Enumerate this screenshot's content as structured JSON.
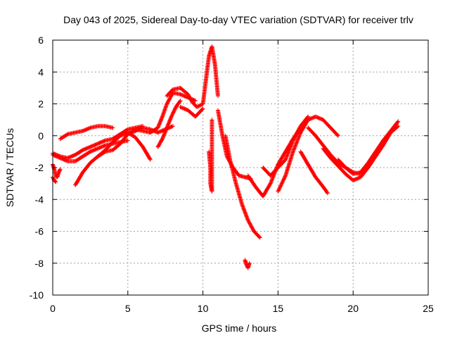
{
  "chart_data": {
    "type": "scatter",
    "title": "Day 043 of 2025, Sidereal Day-to-day VTEC variation (SDTVAR) for receiver trlv",
    "xlabel": "GPS time / hours",
    "ylabel": "SDTVAR / TECUs",
    "xlim": [
      0,
      25
    ],
    "ylim": [
      -10,
      6
    ],
    "xticks": [
      "0",
      "5",
      "10",
      "15",
      "20",
      "25"
    ],
    "yticks": [
      "-10",
      "-8",
      "-6",
      "-4",
      "-2",
      "0",
      "2",
      "4",
      "6"
    ],
    "grid": true,
    "marker": "+",
    "color": "#ff0000",
    "series": [
      {
        "x": [
          0,
          0.1,
          0.2,
          0.3,
          0.4,
          0.5
        ],
        "y": [
          -1.8,
          -2.1,
          -2.5,
          -2.6,
          -2.3,
          -2.1
        ]
      },
      {
        "x": [
          0,
          0.1,
          0.2
        ],
        "y": [
          -2.6,
          -2.8,
          -2.9
        ]
      },
      {
        "x": [
          0,
          0.5,
          1,
          1.5,
          2,
          2.5,
          3,
          3.5,
          4,
          4.5,
          5,
          5.5,
          6
        ],
        "y": [
          -1.1,
          -1.3,
          -1.4,
          -1.2,
          -0.9,
          -0.7,
          -0.5,
          -0.3,
          -0.2,
          0.1,
          0.4,
          0.5,
          0.6
        ]
      },
      {
        "x": [
          0.5,
          1,
          1.5,
          2,
          2.5,
          3,
          3.5,
          4
        ],
        "y": [
          -0.2,
          0.1,
          0.2,
          0.3,
          0.5,
          0.6,
          0.6,
          0.5
        ]
      },
      {
        "x": [
          0,
          0.5,
          1,
          1.5,
          2,
          2.5,
          3,
          3.5,
          4,
          4.5,
          5
        ],
        "y": [
          -1.2,
          -1.4,
          -1.6,
          -1.6,
          -1.3,
          -1.0,
          -0.8,
          -0.6,
          -0.5,
          -0.4,
          -0.3
        ]
      },
      {
        "x": [
          1.5,
          2,
          2.5,
          3,
          3.5,
          4,
          4.5,
          5,
          5.5,
          6,
          6.5
        ],
        "y": [
          -3.1,
          -2.3,
          -1.7,
          -1.3,
          -1.0,
          -0.9,
          -0.5,
          0.1,
          0.4,
          0.3,
          0.2
        ]
      },
      {
        "x": [
          3,
          3.5,
          4,
          4.5,
          5,
          5.5,
          6,
          6.5
        ],
        "y": [
          -1.3,
          -0.9,
          -0.4,
          0.0,
          0.2,
          -0.1,
          -0.7,
          -1.5
        ]
      },
      {
        "x": [
          5,
          5.5,
          6,
          6.5,
          7,
          7.5,
          8
        ],
        "y": [
          0.1,
          0.3,
          0.5,
          0.4,
          0.2,
          0.4,
          0.6
        ]
      },
      {
        "x": [
          7,
          7.3,
          7.6,
          7.9,
          8.2,
          8.5
        ],
        "y": [
          -0.7,
          -0.2,
          0.5,
          1.2,
          1.8,
          2.2
        ]
      },
      {
        "x": [
          6.5,
          7,
          7.3,
          7.6,
          8,
          8.5,
          9,
          9.5
        ],
        "y": [
          0.2,
          0.5,
          1.2,
          2.0,
          2.7,
          2.6,
          2.4,
          2.2
        ]
      },
      {
        "x": [
          7.6,
          8,
          8.5,
          9,
          9.3,
          9.6,
          10
        ],
        "y": [
          2.5,
          2.9,
          3.0,
          2.6,
          2.1,
          1.8,
          2.0
        ]
      },
      {
        "x": [
          8.5,
          9,
          9.5,
          10
        ],
        "y": [
          1.8,
          1.6,
          1.2,
          1.7
        ]
      },
      {
        "x": [
          10,
          10.2,
          10.4,
          10.6,
          10.8,
          11
        ],
        "y": [
          2.0,
          3.5,
          5.0,
          5.6,
          4.5,
          2.5
        ]
      },
      {
        "x": [
          10.4,
          10.5,
          10.5,
          10.6,
          10.6
        ],
        "y": [
          -1.0,
          -2.0,
          -3.0,
          -3.5,
          1.0
        ]
      },
      {
        "x": [
          11,
          11.3,
          11.6,
          12,
          12.4,
          12.8,
          13.2
        ],
        "y": [
          1.6,
          0.0,
          -1.3,
          -2.0,
          -2.5,
          -2.6,
          -2.7
        ]
      },
      {
        "x": [
          11.5,
          11.8,
          12.2,
          12.6,
          13,
          13.4,
          13.8
        ],
        "y": [
          0.0,
          -1.5,
          -3.0,
          -4.3,
          -5.3,
          -6.0,
          -6.4
        ]
      },
      {
        "x": [
          12.8,
          12.9,
          13,
          13.1
        ],
        "y": [
          -7.8,
          -8.1,
          -8.3,
          -8.0
        ]
      },
      {
        "x": [
          13,
          13.5,
          14,
          14.5,
          15,
          15.5,
          16,
          16.5
        ],
        "y": [
          -2.5,
          -3.2,
          -3.8,
          -3.0,
          -1.8,
          -1.0,
          -0.2,
          0.5
        ]
      },
      {
        "x": [
          14,
          14.5,
          15,
          15.5,
          16,
          16.5,
          17
        ],
        "y": [
          -2.0,
          -2.5,
          -2.0,
          -1.5,
          -0.3,
          0.6,
          1.2
        ]
      },
      {
        "x": [
          15,
          15.5,
          16,
          16.5,
          17,
          17.5,
          18,
          18.5,
          19
        ],
        "y": [
          -3.5,
          -2.5,
          -1.0,
          0.2,
          1.0,
          1.2,
          1.0,
          0.5,
          0.0
        ]
      },
      {
        "x": [
          16.5,
          17,
          17.5,
          18,
          18.3
        ],
        "y": [
          -1.0,
          -1.8,
          -2.6,
          -3.2,
          -3.6
        ]
      },
      {
        "x": [
          17,
          17.5,
          18,
          18.5,
          19,
          19.5,
          20,
          20.5
        ],
        "y": [
          0.5,
          0.0,
          -0.6,
          -1.2,
          -1.7,
          -2.0,
          -2.3,
          -2.4
        ]
      },
      {
        "x": [
          18,
          18.5,
          19,
          19.5,
          20,
          20.5,
          21,
          21.5,
          22,
          22.5,
          23
        ],
        "y": [
          -0.8,
          -1.4,
          -1.9,
          -2.4,
          -2.8,
          -2.6,
          -2.0,
          -1.3,
          -0.6,
          0.2,
          0.6
        ]
      },
      {
        "x": [
          19,
          19.5,
          20,
          20.5,
          21,
          21.5,
          22,
          22.5,
          23
        ],
        "y": [
          -1.5,
          -2.0,
          -2.4,
          -2.3,
          -1.7,
          -1.0,
          -0.3,
          0.3,
          0.9
        ]
      }
    ]
  }
}
